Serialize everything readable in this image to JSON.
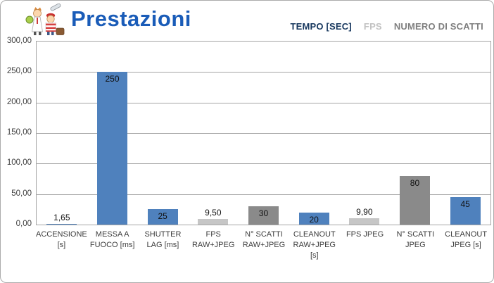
{
  "header": {
    "title": "Prestazioni",
    "logo": "mascot-cartoon-logo"
  },
  "legend": {
    "items": [
      {
        "label": "TEMPO [SEC]",
        "color": "#17375E",
        "series": "tempo"
      },
      {
        "label": "FPS",
        "color": "#C2C2C2",
        "series": "fps"
      },
      {
        "label": "NUMERO DI SCATTI",
        "color": "#7F7F7F",
        "series": "scatti"
      }
    ]
  },
  "chart_data": {
    "type": "bar",
    "title": "Prestazioni",
    "xlabel": "",
    "ylabel": "",
    "ylim": [
      0,
      300
    ],
    "y_tick_step": 50,
    "y_tick_labels": [
      "0,00",
      "50,00",
      "100,00",
      "150,00",
      "200,00",
      "250,00",
      "300,00"
    ],
    "grid": true,
    "legend_position": "top-right",
    "categories": [
      "ACCENSIONE [s]",
      "MESSA A FUOCO [ms]",
      "SHUTTER LAG [ms]",
      "FPS RAW+JPEG",
      "N° SCATTI RAW+JPEG",
      "CLEANOUT RAW+JPEG [s]",
      "FPS JPEG",
      "N° SCATTI JPEG",
      "CLEANOUT JPEG [s]"
    ],
    "values": [
      1.65,
      250,
      25,
      9.5,
      30,
      20,
      9.9,
      80,
      45
    ],
    "value_labels": [
      "1,65",
      "250",
      "25",
      "9,50",
      "30",
      "20",
      "9,90",
      "80",
      "45"
    ],
    "bar_series": [
      "tempo",
      "tempo",
      "tempo",
      "fps",
      "scatti",
      "tempo",
      "fps",
      "scatti",
      "tempo"
    ],
    "series_colors": {
      "tempo": "#4F81BD",
      "fps": "#C6C6C6",
      "scatti": "#8A8A8A"
    },
    "gridline_color": "#A6A6A6"
  }
}
